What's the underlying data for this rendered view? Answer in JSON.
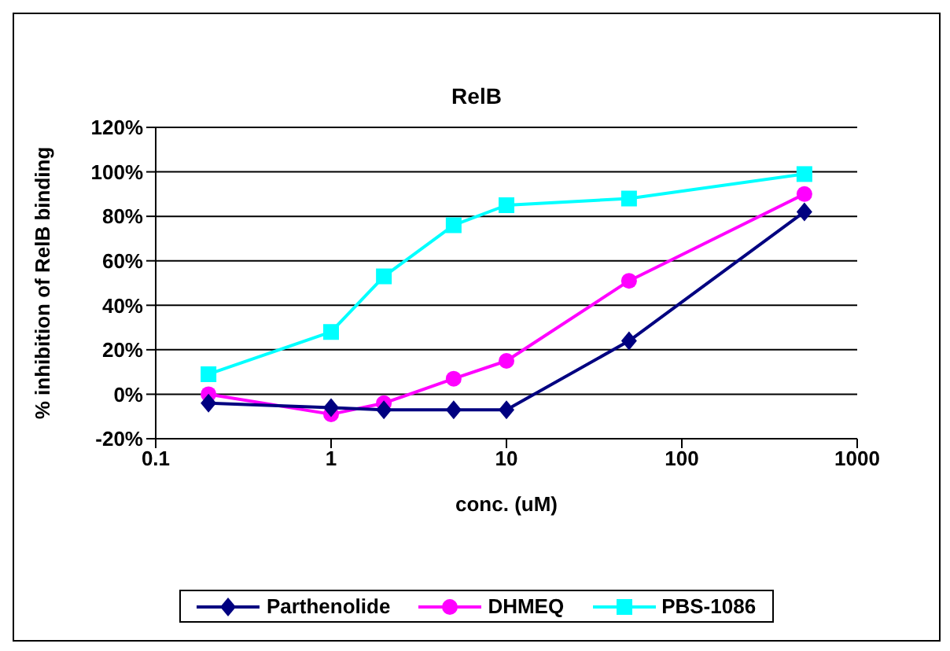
{
  "chart_data": {
    "type": "line",
    "title": "RelB",
    "xlabel": "conc. (uM)",
    "ylabel": "% inhibition of RelB binding",
    "log": "x",
    "grid": "y",
    "legend": "bottom",
    "x": [
      0.2,
      1,
      2,
      5,
      10,
      50,
      500
    ],
    "xlim": [
      0.1,
      1000
    ],
    "xticks": [
      0.1,
      1,
      10,
      100,
      1000
    ],
    "ylim": [
      -20,
      120
    ],
    "yticks": [
      {
        "value": -20,
        "label": "-20%"
      },
      {
        "value": 0,
        "label": "0%"
      },
      {
        "value": 20,
        "label": "20%"
      },
      {
        "value": 40,
        "label": "40%"
      },
      {
        "value": 60,
        "label": "60%"
      },
      {
        "value": 80,
        "label": "80%"
      },
      {
        "value": 100,
        "label": "100%"
      },
      {
        "value": 120,
        "label": "120%"
      }
    ],
    "series": [
      {
        "name": "Parthenolide",
        "color": "#000080",
        "marker": "diamond",
        "values": [
          -4,
          -6,
          -7,
          -7,
          -7,
          24,
          82
        ]
      },
      {
        "name": "DHMEQ",
        "color": "#ff00ff",
        "marker": "circle",
        "values": [
          0,
          -9,
          -4,
          7,
          15,
          51,
          90
        ]
      },
      {
        "name": "PBS-1086",
        "color": "#00ffff",
        "marker": "square",
        "values": [
          9,
          28,
          53,
          76,
          85,
          88,
          99
        ]
      }
    ]
  }
}
